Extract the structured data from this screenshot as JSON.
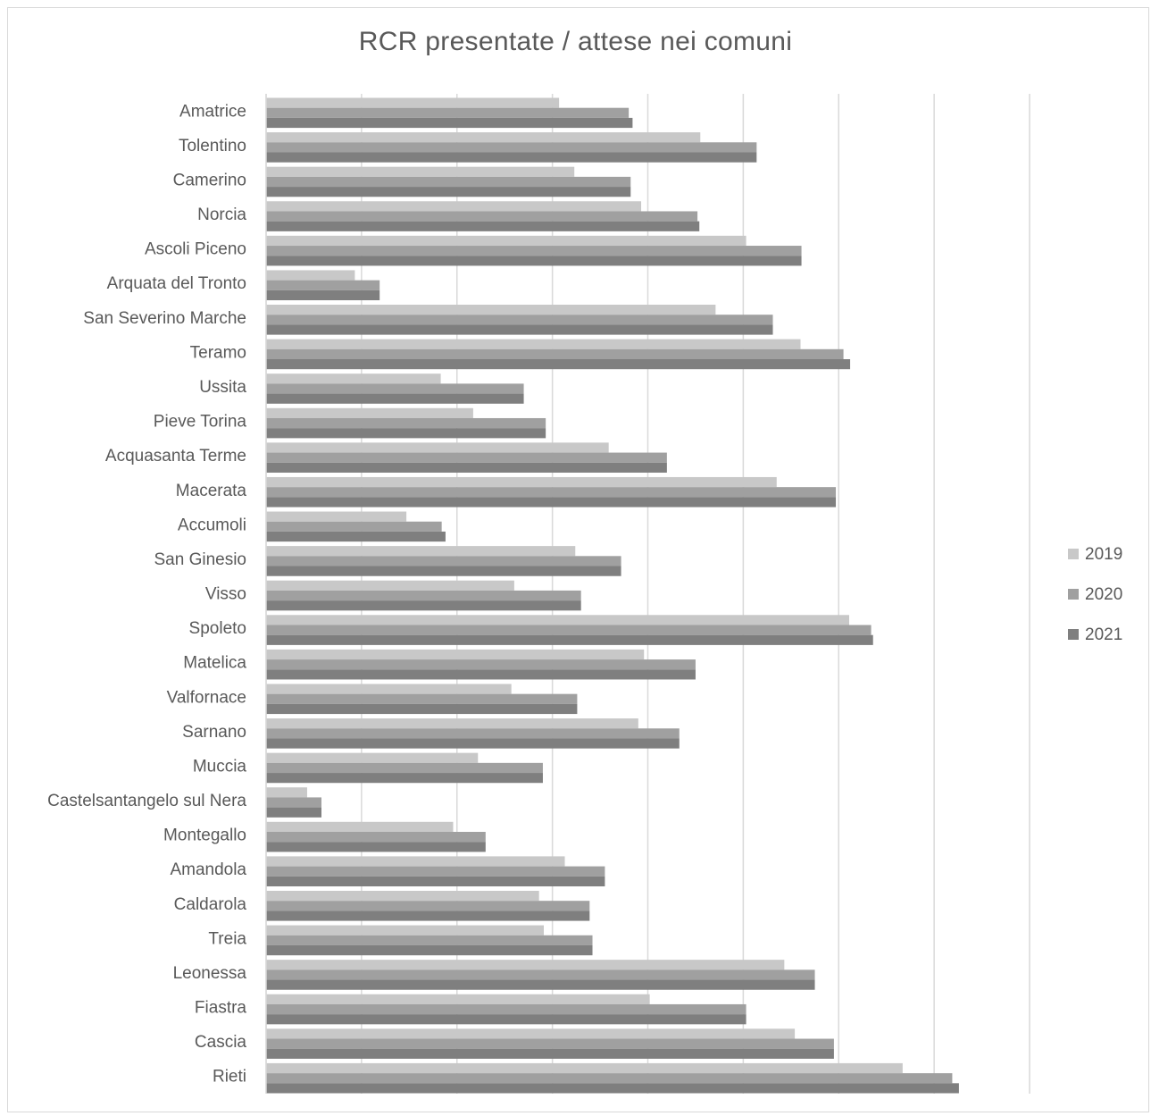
{
  "chart_data": {
    "type": "bar",
    "orientation": "horizontal",
    "title": "RCR presentate / attese nei comuni",
    "xlabel": "",
    "ylabel": "",
    "xlim": [
      0,
      8
    ],
    "grid": true,
    "legend_position": "right",
    "categories": [
      "Amatrice",
      "Tolentino",
      "Camerino",
      "Norcia",
      "Ascoli Piceno",
      "Arquata del Tronto",
      "San Severino Marche",
      "Teramo",
      "Ussita",
      "Pieve Torina",
      "Acquasanta Terme",
      "Macerata",
      "Accumoli",
      "San Ginesio",
      "Visso",
      "Spoleto",
      "Matelica",
      "Valfornace",
      "Sarnano",
      "Muccia",
      "Castelsantangelo sul Nera",
      "Montegallo",
      "Amandola",
      "Caldarola",
      "Treia",
      "Leonessa",
      "Fiastra",
      "Cascia",
      "Rieti"
    ],
    "series": [
      {
        "name": "2019",
        "color": "#c8c8c8",
        "values": [
          3.07,
          4.55,
          3.23,
          3.93,
          5.03,
          0.93,
          4.71,
          5.6,
          1.83,
          2.17,
          3.59,
          5.35,
          1.47,
          3.24,
          2.6,
          6.11,
          3.96,
          2.57,
          3.9,
          2.22,
          0.43,
          1.96,
          3.13,
          2.86,
          2.91,
          5.43,
          4.02,
          5.54,
          6.67
        ]
      },
      {
        "name": "2020",
        "color": "#a0a0a0",
        "values": [
          3.8,
          5.14,
          3.82,
          4.52,
          5.61,
          1.19,
          5.31,
          6.05,
          2.7,
          2.93,
          4.2,
          5.97,
          1.84,
          3.72,
          3.3,
          6.34,
          4.5,
          3.26,
          4.33,
          2.9,
          0.58,
          2.3,
          3.55,
          3.39,
          3.42,
          5.75,
          5.03,
          5.95,
          7.19
        ]
      },
      {
        "name": "2021",
        "color": "#7f7f7f",
        "values": [
          3.84,
          5.14,
          3.82,
          4.54,
          5.61,
          1.19,
          5.31,
          6.12,
          2.7,
          2.93,
          4.2,
          5.97,
          1.88,
          3.72,
          3.3,
          6.36,
          4.5,
          3.26,
          4.33,
          2.9,
          0.58,
          2.3,
          3.55,
          3.39,
          3.42,
          5.75,
          5.03,
          5.95,
          7.26
        ]
      }
    ]
  }
}
